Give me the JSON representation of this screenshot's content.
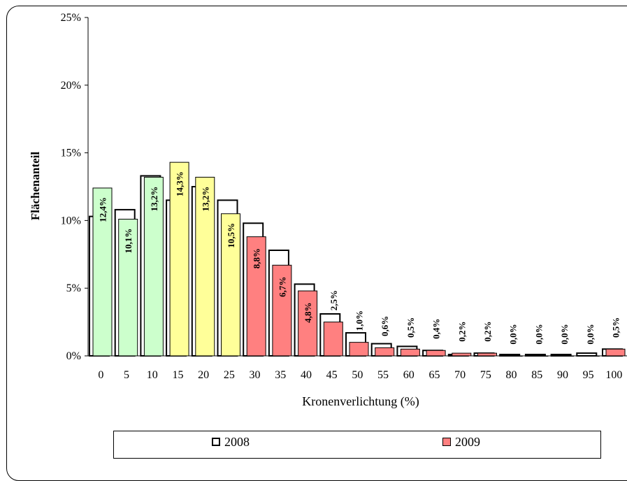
{
  "chart_data": {
    "type": "bar",
    "title": "",
    "xlabel": "Kronenverlichtung (%)",
    "ylabel": "Flächenanteil",
    "ylim": [
      0,
      25
    ],
    "yticks": [
      "0%",
      "5%",
      "10%",
      "15%",
      "20%",
      "25%"
    ],
    "categories": [
      "0",
      "5",
      "10",
      "15",
      "20",
      "25",
      "30",
      "35",
      "40",
      "45",
      "50",
      "55",
      "60",
      "65",
      "70",
      "75",
      "80",
      "85",
      "90",
      "95",
      "100"
    ],
    "series": [
      {
        "name": "2008",
        "values": [
          10.3,
          10.8,
          13.3,
          11.5,
          12.5,
          11.5,
          9.8,
          7.8,
          5.3,
          3.1,
          1.7,
          0.9,
          0.7,
          0.4,
          0.1,
          0.2,
          0.1,
          0.1,
          0.1,
          0.2,
          0.5
        ],
        "color": "#ffffff"
      },
      {
        "name": "2009",
        "values": [
          12.4,
          10.1,
          13.2,
          14.3,
          13.2,
          10.5,
          8.8,
          6.7,
          4.8,
          2.5,
          1.0,
          0.6,
          0.5,
          0.4,
          0.2,
          0.2,
          0.0,
          0.0,
          0.0,
          0.0,
          0.5
        ],
        "data_labels": [
          "12,4%",
          "10,1%",
          "13,2%",
          "14,3%",
          "13,2%",
          "10,5%",
          "8,8%",
          "6,7%",
          "4,8%",
          "2,5%",
          "1,0%",
          "0,6%",
          "0,5%",
          "0,4%",
          "0,2%",
          "0,2%",
          "0,0%",
          "0,0%",
          "0,0%",
          "0,0%",
          "0,5%"
        ],
        "bar_colors": [
          "#ccffcc",
          "#ccffcc",
          "#ccffcc",
          "#ffff99",
          "#ffff99",
          "#ffff99",
          "#ff8080",
          "#ff8080",
          "#ff8080",
          "#ff8080",
          "#ff8080",
          "#ff8080",
          "#ff8080",
          "#ff8080",
          "#ff8080",
          "#ff8080",
          "#ff8080",
          "#ff8080",
          "#ff8080",
          "#ff8080",
          "#ff8080"
        ]
      }
    ],
    "grid": false,
    "legend_position": "bottom"
  },
  "legend": {
    "label_2008": "2008",
    "label_2009": "2009",
    "color_2009": "#ff8080"
  }
}
